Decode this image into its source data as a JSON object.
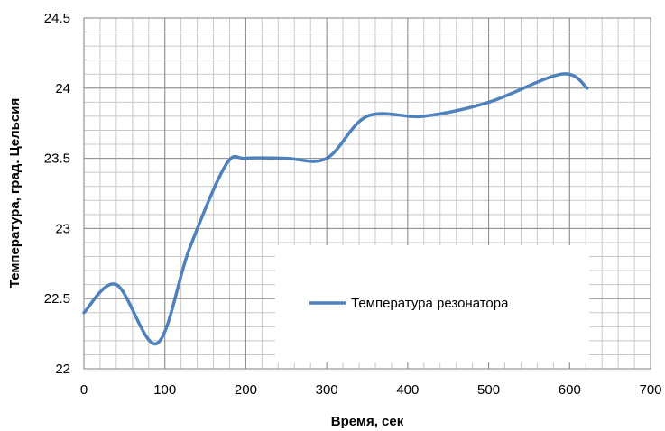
{
  "chart_data": {
    "type": "line",
    "title": "",
    "xlabel": "Время, сек",
    "ylabel": "Температура, град. Цельсия",
    "xlim": [
      0,
      700
    ],
    "ylim": [
      22,
      24.5
    ],
    "x_major_ticks": [
      0,
      100,
      200,
      300,
      400,
      500,
      600,
      700
    ],
    "y_major_ticks": [
      22,
      22.5,
      23,
      23.5,
      24,
      24.5
    ],
    "x_tick_labels": [
      "0",
      "100",
      "200",
      "300",
      "400",
      "500",
      "600",
      "700"
    ],
    "y_tick_labels": [
      "22",
      "22.5",
      "23",
      "23.5",
      "24",
      "24.5"
    ],
    "grid": true,
    "minor_grid": true,
    "legend_position": "bottom-right",
    "series": [
      {
        "name": "Температура резонатора",
        "color": "#4f81bd",
        "x": [
          0,
          40,
          90,
          130,
          175,
          200,
          250,
          300,
          350,
          420,
          500,
          590,
          622
        ],
        "y": [
          22.4,
          22.6,
          22.18,
          22.85,
          23.45,
          23.5,
          23.5,
          23.5,
          23.8,
          23.8,
          23.9,
          24.1,
          24.0
        ]
      }
    ]
  }
}
